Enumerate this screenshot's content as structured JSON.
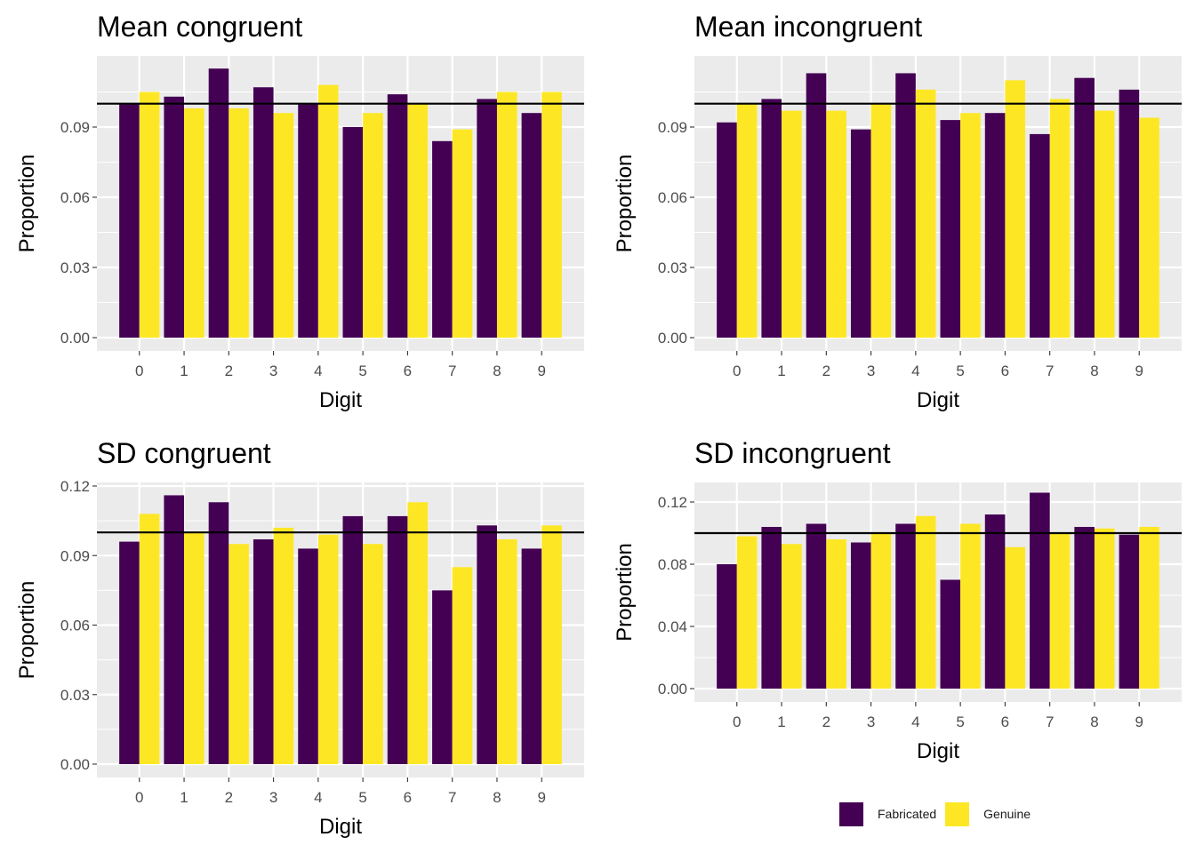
{
  "colors": {
    "fabricated": "#440154",
    "genuine": "#FDE725",
    "panel_bg": "#EBEBEB",
    "grid": "#FFFFFF",
    "reference_line": "#000000",
    "tick_text": "#4D4D4D"
  },
  "legend": {
    "items": [
      {
        "label": "Fabricated",
        "color": "#440154"
      },
      {
        "label": "Genuine",
        "color": "#FDE725"
      }
    ]
  },
  "chart_data": [
    {
      "type": "bar",
      "title": "Mean congruent",
      "xlabel": "Digit",
      "ylabel": "Proportion",
      "categories": [
        "0",
        "1",
        "2",
        "3",
        "4",
        "5",
        "6",
        "7",
        "8",
        "9"
      ],
      "ylim": [
        0,
        0.12
      ],
      "yticks": [
        "0.00",
        "0.03",
        "0.06",
        "0.09"
      ],
      "reference_line": 0.1,
      "series": [
        {
          "name": "Fabricated",
          "values": [
            0.1,
            0.103,
            0.115,
            0.107,
            0.1,
            0.09,
            0.104,
            0.084,
            0.102,
            0.096
          ]
        },
        {
          "name": "Genuine",
          "values": [
            0.105,
            0.098,
            0.098,
            0.096,
            0.108,
            0.096,
            0.1,
            0.089,
            0.105,
            0.105
          ]
        }
      ]
    },
    {
      "type": "bar",
      "title": "Mean incongruent",
      "xlabel": "Digit",
      "ylabel": "Proportion",
      "categories": [
        "0",
        "1",
        "2",
        "3",
        "4",
        "5",
        "6",
        "7",
        "8",
        "9"
      ],
      "ylim": [
        0,
        0.12
      ],
      "yticks": [
        "0.00",
        "0.03",
        "0.06",
        "0.09"
      ],
      "reference_line": 0.1,
      "series": [
        {
          "name": "Fabricated",
          "values": [
            0.092,
            0.102,
            0.113,
            0.089,
            0.113,
            0.093,
            0.096,
            0.087,
            0.111,
            0.106
          ]
        },
        {
          "name": "Genuine",
          "values": [
            0.1,
            0.097,
            0.097,
            0.1,
            0.106,
            0.096,
            0.11,
            0.102,
            0.097,
            0.094
          ]
        }
      ]
    },
    {
      "type": "bar",
      "title": "SD congruent",
      "xlabel": "Digit",
      "ylabel": "Proportion",
      "categories": [
        "0",
        "1",
        "2",
        "3",
        "4",
        "5",
        "6",
        "7",
        "8",
        "9"
      ],
      "ylim": [
        0,
        0.12
      ],
      "yticks": [
        "0.00",
        "0.03",
        "0.06",
        "0.09",
        "0.12"
      ],
      "reference_line": 0.1,
      "series": [
        {
          "name": "Fabricated",
          "values": [
            0.096,
            0.116,
            0.113,
            0.097,
            0.093,
            0.107,
            0.107,
            0.075,
            0.103,
            0.093
          ]
        },
        {
          "name": "Genuine",
          "values": [
            0.108,
            0.1,
            0.095,
            0.102,
            0.099,
            0.095,
            0.113,
            0.085,
            0.097,
            0.103
          ]
        }
      ]
    },
    {
      "type": "bar",
      "title": "SD incongruent",
      "xlabel": "Digit",
      "ylabel": "Proportion",
      "categories": [
        "0",
        "1",
        "2",
        "3",
        "4",
        "5",
        "6",
        "7",
        "8",
        "9"
      ],
      "ylim": [
        0,
        0.12
      ],
      "yticks": [
        "0.00",
        "0.04",
        "0.08",
        "0.12"
      ],
      "reference_line": 0.1,
      "series": [
        {
          "name": "Fabricated",
          "values": [
            0.08,
            0.104,
            0.106,
            0.094,
            0.106,
            0.07,
            0.112,
            0.126,
            0.104,
            0.099
          ]
        },
        {
          "name": "Genuine",
          "values": [
            0.098,
            0.093,
            0.096,
            0.1,
            0.111,
            0.106,
            0.091,
            0.1,
            0.103,
            0.104
          ]
        }
      ]
    }
  ]
}
